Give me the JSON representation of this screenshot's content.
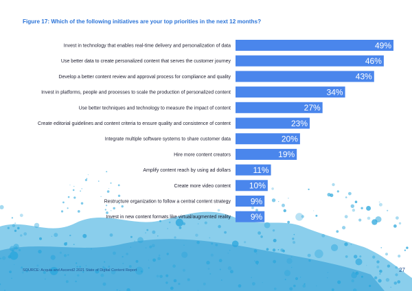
{
  "figure": {
    "title": "Figure 17: Which of the following initiatives are your top priorities in the next 12 months?",
    "source": "SOURCE: Acquia and Ascend2 2021 State of Digital Content Report",
    "page_number": "27"
  },
  "colors": {
    "bar": "#4a86ec",
    "title": "#2b74d8",
    "splash": "#29a6dc"
  },
  "chart_data": {
    "type": "bar",
    "orientation": "horizontal",
    "title": "Figure 17: Which of the following initiatives are your top priorities in the next 12 months?",
    "xlabel": "",
    "ylabel": "",
    "xlim": [
      0,
      49
    ],
    "grid": false,
    "legend": "none",
    "value_suffix": "%",
    "categories": [
      "Invest in technology that enables real-time delivery and personalization of data",
      "Use better data to create personalized content that serves the customer journey",
      "Develop a better content review and approval process for compliance and quality",
      "Invest in platforms, people and processes to scale the production of personalized content",
      "Use better techniques and technology to measure the impact of content",
      "Create editorial guidelines and content criteria to ensure quality and consistence of content",
      "Integrate multiple software systems to share customer data",
      "Hire more content creators",
      "Amplify content reach by using ad dollars",
      "Create more video content",
      "Restructure organization to follow a central content strategy",
      "Invest in new content formats like virtual/augmented reality"
    ],
    "values": [
      49,
      46,
      43,
      34,
      27,
      23,
      20,
      19,
      11,
      10,
      9,
      9
    ]
  }
}
